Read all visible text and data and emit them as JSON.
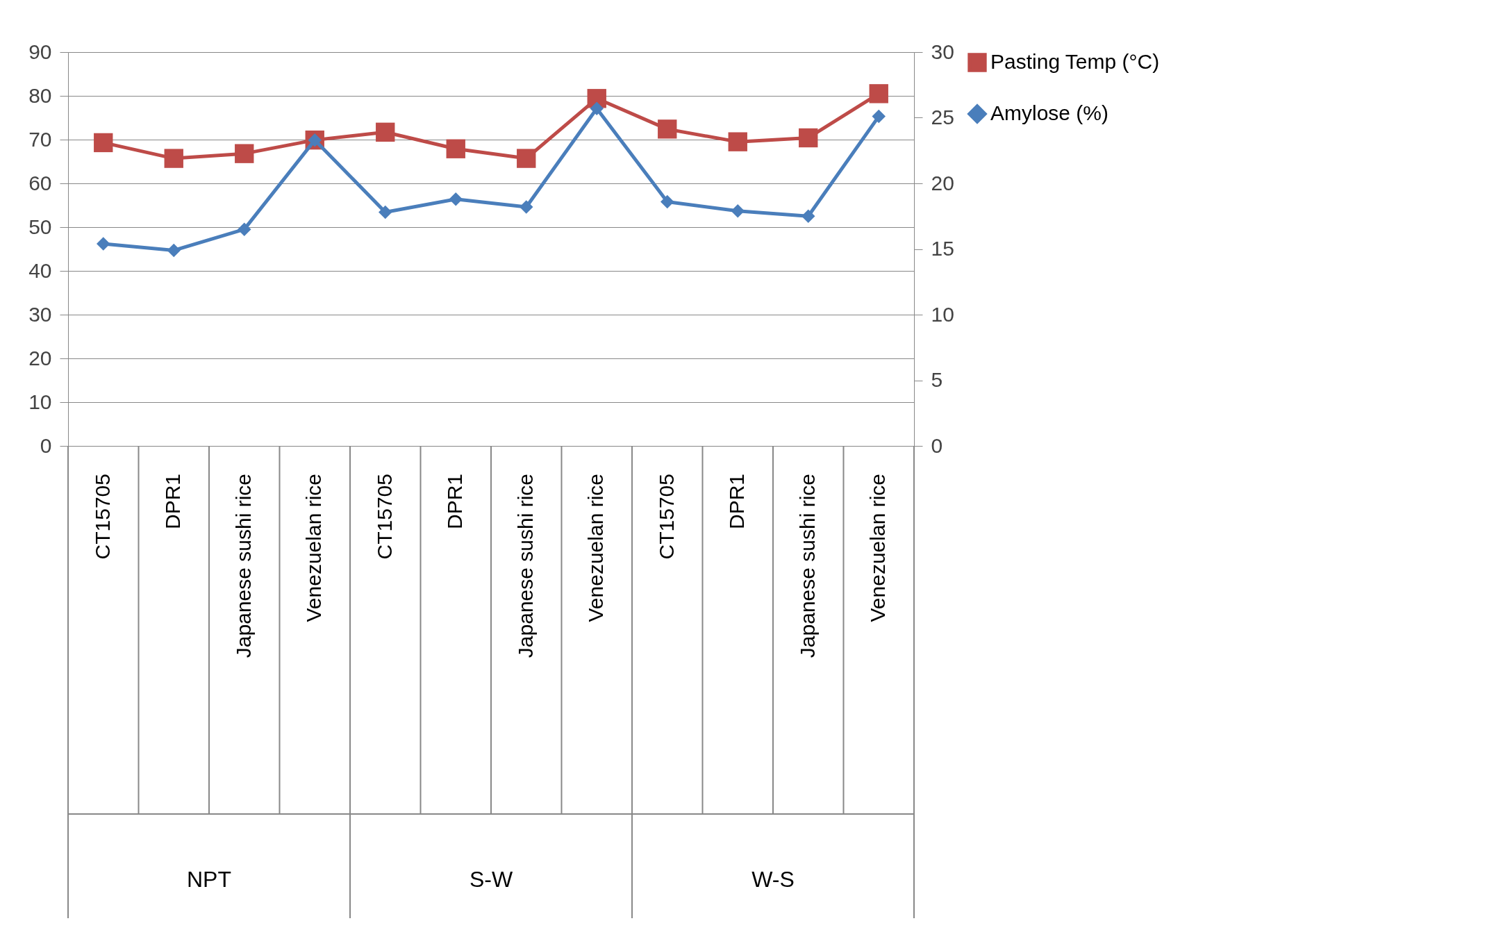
{
  "chart_data": {
    "type": "line",
    "categories": [
      "CT15705",
      "DPR1",
      "Japanese sushi rice",
      "Venezuelan rice",
      "CT15705",
      "DPR1",
      "Japanese sushi rice",
      "Venezuelan rice",
      "CT15705",
      "DPR1",
      "Japanese sushi rice",
      "Venezuelan rice"
    ],
    "series": [
      {
        "name": "Pasting Temp (°C)",
        "color": "#be4b48",
        "marker": "square",
        "values": [
          69.3,
          65.7,
          66.8,
          69.9,
          71.7,
          67.9,
          65.7,
          79.4,
          72.4,
          69.5,
          70.4,
          80.5
        ]
      },
      {
        "name": "Amylose (%)",
        "color": "#4a7ebb",
        "marker": "diamond",
        "axis": "y2",
        "values": [
          15.4,
          14.9,
          16.5,
          23.3,
          17.8,
          18.8,
          18.2,
          25.7,
          18.6,
          17.9,
          17.5,
          25.1
        ]
      }
    ],
    "annotations": [
      "NPT",
      "S-W",
      "W-S"
    ],
    "ylim": [
      0,
      90
    ],
    "yticks": [
      0,
      10,
      20,
      30,
      40,
      50,
      60,
      70,
      80,
      90
    ],
    "y2lim": [
      0,
      30
    ],
    "y2ticks": [
      0,
      5,
      10,
      15,
      20,
      25,
      30
    ],
    "grid": "y",
    "legend": "right",
    "line_style": "solid"
  }
}
